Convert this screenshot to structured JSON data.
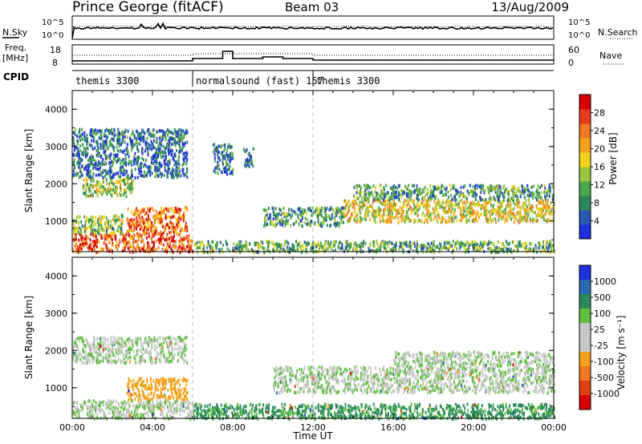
{
  "header": {
    "station": "Prince George (fitACF)",
    "beam": "Beam 03",
    "date": "13/Aug/2009"
  },
  "sky_panel": {
    "left_label": "N.Sky",
    "right_label": "N.Search",
    "left_ticks": [
      "10^5",
      "10^0"
    ],
    "right_ticks": [
      "10^5",
      "10^0"
    ]
  },
  "freq_panel": {
    "left_label_1": "Freq.",
    "left_label_2": "[MHz]",
    "right_label": "Nave",
    "left_ticks": [
      "18",
      "8"
    ],
    "right_ticks": [
      "60",
      "0"
    ]
  },
  "cpid": {
    "label": "CPID",
    "segments": [
      {
        "name": "themis 3300",
        "start_hour": 0
      },
      {
        "name": "normalsound (fast) 157",
        "start_hour": 6
      },
      {
        "name": "themis 3300",
        "start_hour": 12
      }
    ]
  },
  "colors": {
    "power_scale": [
      "#1f2fe0",
      "#2a55b0",
      "#2c8a5a",
      "#4aa84a",
      "#9ac43a",
      "#f2d21a",
      "#f5a21a",
      "#f07820",
      "#e83a1a",
      "#d80000"
    ],
    "velocity_scale": [
      "#1f2fe0",
      "#2a6ab4",
      "#2a8a5a",
      "#60c040",
      "#c8c8c8",
      "#c8c8c8",
      "#f5a21a",
      "#f07820",
      "#e04010",
      "#d80000"
    ],
    "grid": "#bbbbbb"
  },
  "chart_data": [
    {
      "type": "heatmap",
      "title": "Power",
      "xlabel": "",
      "ylabel": "Slant Range [km]",
      "xlim": [
        0,
        24
      ],
      "ylim": [
        180,
        4500
      ],
      "yticks": [
        "1000",
        "2000",
        "3000",
        "4000"
      ],
      "colorbar_label": "Power [dB]",
      "colorbar_ticks": [
        "4",
        "8",
        "12",
        "16",
        "20",
        "24",
        "28"
      ],
      "scatter_regions": [
        {
          "x": [
            0.0,
            6.0
          ],
          "y": [
            200,
            700
          ],
          "level": 0.8
        },
        {
          "x": [
            2.7,
            5.7
          ],
          "y": [
            700,
            1400
          ],
          "level": 0.75
        },
        {
          "x": [
            0.0,
            2.5
          ],
          "y": [
            700,
            1200
          ],
          "level": 0.4
        },
        {
          "x": [
            0.5,
            3.0
          ],
          "y": [
            1700,
            2200
          ],
          "level": 0.45
        },
        {
          "x": [
            0.0,
            5.7
          ],
          "y": [
            2200,
            3500
          ],
          "level": 0.2
        },
        {
          "x": [
            6.0,
            24.0
          ],
          "y": [
            200,
            500
          ],
          "level": 0.35
        },
        {
          "x": [
            9.5,
            13.5
          ],
          "y": [
            900,
            1400
          ],
          "level": 0.3
        },
        {
          "x": [
            13.5,
            24.0
          ],
          "y": [
            1000,
            1600
          ],
          "level": 0.55
        },
        {
          "x": [
            14.0,
            24.0
          ],
          "y": [
            1600,
            2000
          ],
          "level": 0.3
        },
        {
          "x": [
            7.0,
            8.0
          ],
          "y": [
            2300,
            3100
          ],
          "level": 0.2
        },
        {
          "x": [
            8.5,
            9.0
          ],
          "y": [
            2500,
            3000
          ],
          "level": 0.2
        }
      ]
    },
    {
      "type": "heatmap",
      "title": "Velocity",
      "xlabel": "Time UT",
      "ylabel": "Slant Range [km]",
      "xlim": [
        0,
        24
      ],
      "ylim": [
        180,
        4500
      ],
      "yticks": [
        "1000",
        "2000",
        "3000",
        "4000"
      ],
      "xticks": [
        "00:00",
        "04:00",
        "08:00",
        "12:00",
        "16:00",
        "20:00",
        "00:00"
      ],
      "colorbar_label": "Velocity [m s⁻¹]",
      "colorbar_ticks": [
        "1000",
        "500",
        "100",
        "25",
        "-25",
        "-100",
        "-500",
        "-1000"
      ],
      "scatter_regions": [
        {
          "x": [
            2.7,
            5.7
          ],
          "y": [
            700,
            1300
          ],
          "velocity": -300
        },
        {
          "x": [
            0.0,
            6.0
          ],
          "y": [
            200,
            700
          ],
          "velocity": 0
        },
        {
          "x": [
            6.0,
            24.0
          ],
          "y": [
            200,
            600
          ],
          "velocity": 150
        },
        {
          "x": [
            0.0,
            5.7
          ],
          "y": [
            1700,
            2400
          ],
          "velocity": 0
        },
        {
          "x": [
            10.0,
            24.0
          ],
          "y": [
            900,
            1600
          ],
          "velocity": 0
        },
        {
          "x": [
            16.0,
            24.0
          ],
          "y": [
            1600,
            2000
          ],
          "velocity": 0
        }
      ]
    }
  ]
}
